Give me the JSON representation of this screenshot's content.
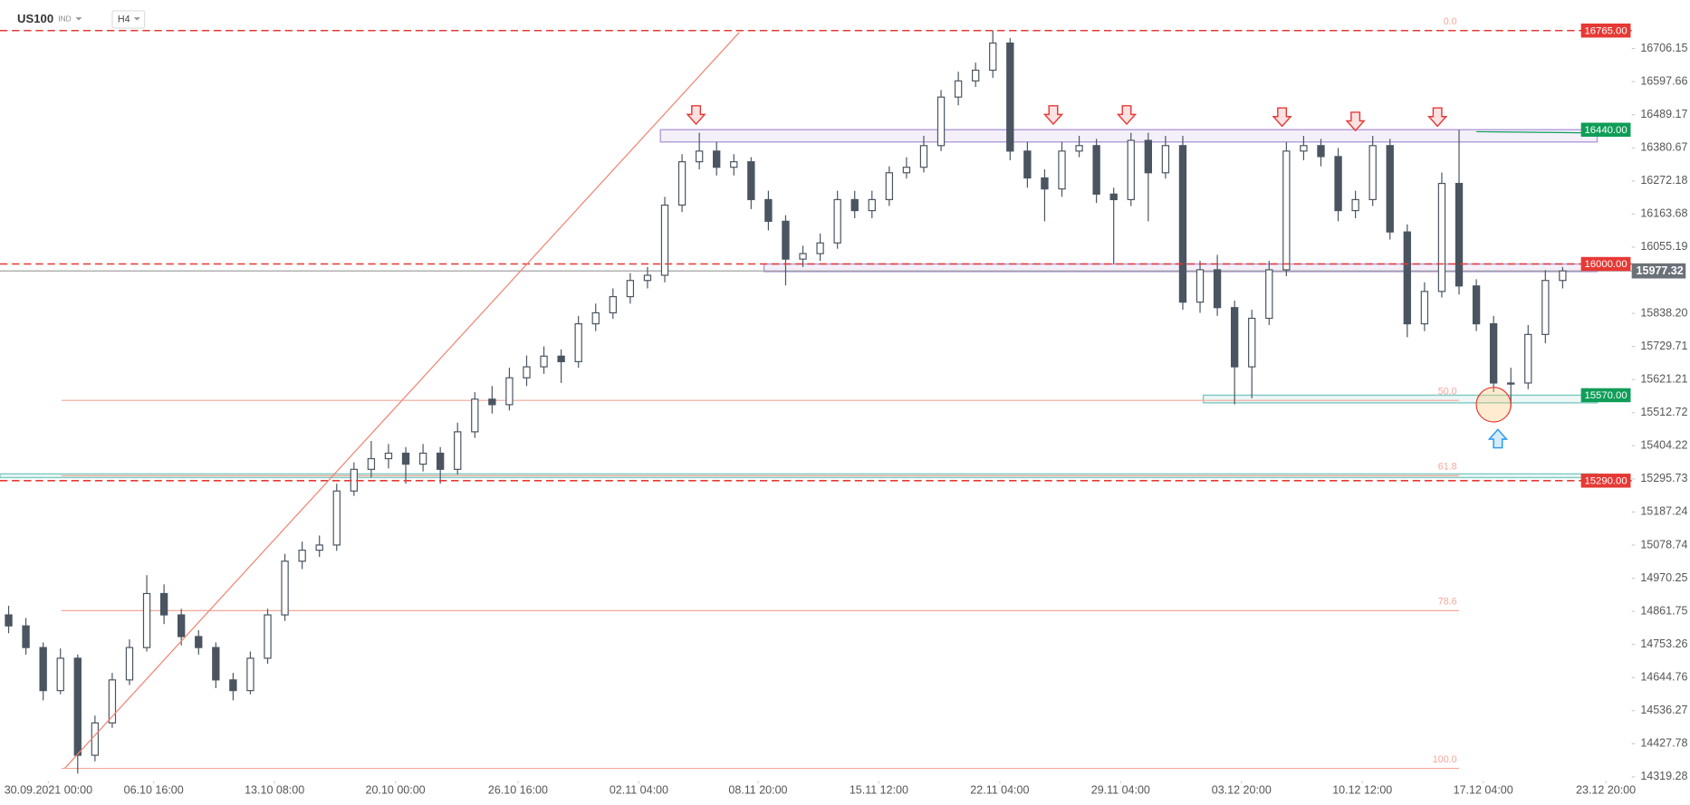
{
  "chart_data": {
    "type": "candlestick",
    "symbol": "US100",
    "market": "IND",
    "timeframe": "H4",
    "ylim": [
      14312,
      16865
    ],
    "xlim": [
      -0.5,
      94
    ],
    "yticks": [
      16706.15,
      16597.66,
      16489.17,
      16380.67,
      16272.18,
      16163.68,
      16055.19,
      {
        "value": 15838.2,
        "label": "15838.20"
      },
      15729.71,
      15621.21,
      15512.72,
      15404.22,
      15295.73,
      15187.24,
      15078.74,
      14970.25,
      14861.75,
      14753.26,
      14644.76,
      14536.27,
      14427.78,
      14319.28
    ],
    "xticks": [
      {
        "value": 2.3,
        "label": "30.09.2021  00:00"
      },
      {
        "value": 8.4,
        "label": "06.10  16:00"
      },
      {
        "value": 15.4,
        "label": "13.10  08:00"
      },
      {
        "value": 22.4,
        "label": "20.10  00:00"
      },
      {
        "value": 29.5,
        "label": "26.10  16:00"
      },
      {
        "value": 36.5,
        "label": "02.11  04:00"
      },
      {
        "value": 43.4,
        "label": "08.11  20:00"
      },
      {
        "value": 50.4,
        "label": "15.11  12:00"
      },
      {
        "value": 57.4,
        "label": "22.11  04:00"
      },
      {
        "value": 64.4,
        "label": "29.11  04:00"
      },
      {
        "value": 71.4,
        "label": "03.12  20:00"
      },
      {
        "value": 78.4,
        "label": "10.12  12:00"
      },
      {
        "value": 85.4,
        "label": "17.12  04:00"
      },
      {
        "value": 92.5,
        "label": "23.12  20:00"
      }
    ],
    "up_color": "#ffffff",
    "down_color": "#4a5561",
    "candles": [
      [
        14850,
        14880,
        14790,
        14814
      ],
      [
        14814,
        14840,
        14720,
        14743
      ],
      [
        14743,
        14760,
        14570,
        14602
      ],
      [
        14602,
        14740,
        14590,
        14708
      ],
      [
        14708,
        14720,
        14330,
        14390
      ],
      [
        14390,
        14520,
        14370,
        14496
      ],
      [
        14496,
        14660,
        14480,
        14637
      ],
      [
        14637,
        14770,
        14620,
        14743
      ],
      [
        14743,
        14980,
        14730,
        14920
      ],
      [
        14920,
        14950,
        14820,
        14850
      ],
      [
        14850,
        14870,
        14750,
        14779
      ],
      [
        14779,
        14800,
        14720,
        14743
      ],
      [
        14743,
        14760,
        14610,
        14637
      ],
      [
        14637,
        14660,
        14570,
        14602
      ],
      [
        14602,
        14730,
        14590,
        14708
      ],
      [
        14708,
        14870,
        14690,
        14850
      ],
      [
        14850,
        15050,
        14830,
        15026
      ],
      [
        15026,
        15090,
        15000,
        15062
      ],
      [
        15062,
        15110,
        15040,
        15079
      ],
      [
        15079,
        15280,
        15060,
        15256
      ],
      [
        15256,
        15350,
        15240,
        15327
      ],
      [
        15327,
        15420,
        15300,
        15362
      ],
      [
        15362,
        15410,
        15330,
        15380
      ],
      [
        15380,
        15400,
        15280,
        15344
      ],
      [
        15344,
        15410,
        15320,
        15380
      ],
      [
        15380,
        15400,
        15280,
        15327
      ],
      [
        15327,
        15480,
        15310,
        15450
      ],
      [
        15450,
        15580,
        15430,
        15557
      ],
      [
        15557,
        15600,
        15510,
        15539
      ],
      [
        15539,
        15660,
        15520,
        15627
      ],
      [
        15627,
        15700,
        15600,
        15663
      ],
      [
        15663,
        15730,
        15640,
        15698
      ],
      [
        15698,
        15720,
        15610,
        15680
      ],
      [
        15680,
        15830,
        15660,
        15804
      ],
      [
        15804,
        15870,
        15780,
        15840
      ],
      [
        15840,
        15920,
        15820,
        15893
      ],
      [
        15893,
        15970,
        15870,
        15946
      ],
      [
        15946,
        15990,
        15920,
        15963
      ],
      [
        15963,
        16220,
        15940,
        16193
      ],
      [
        16193,
        16360,
        16170,
        16335
      ],
      [
        16335,
        16430,
        16310,
        16370
      ],
      [
        16370,
        16400,
        16290,
        16317
      ],
      [
        16317,
        16360,
        16290,
        16335
      ],
      [
        16335,
        16350,
        16180,
        16211
      ],
      [
        16211,
        16240,
        16110,
        16140
      ],
      [
        16140,
        16160,
        15930,
        16016
      ],
      [
        16016,
        16060,
        15990,
        16034
      ],
      [
        16034,
        16100,
        16010,
        16069
      ],
      [
        16069,
        16240,
        16050,
        16211
      ],
      [
        16211,
        16240,
        16150,
        16175
      ],
      [
        16175,
        16240,
        16150,
        16211
      ],
      [
        16211,
        16320,
        16190,
        16299
      ],
      [
        16299,
        16350,
        16280,
        16317
      ],
      [
        16317,
        16420,
        16300,
        16388
      ],
      [
        16388,
        16570,
        16370,
        16547
      ],
      [
        16547,
        16630,
        16520,
        16600
      ],
      [
        16600,
        16660,
        16580,
        16635
      ],
      [
        16635,
        16765,
        16610,
        16724
      ],
      [
        16724,
        16740,
        16340,
        16370
      ],
      [
        16370,
        16400,
        16250,
        16282
      ],
      [
        16282,
        16310,
        16140,
        16246
      ],
      [
        16246,
        16400,
        16220,
        16370
      ],
      [
        16370,
        16420,
        16350,
        16388
      ],
      [
        16388,
        16410,
        16200,
        16229
      ],
      [
        16229,
        16250,
        16000,
        16211
      ],
      [
        16211,
        16430,
        16190,
        16405
      ],
      [
        16405,
        16430,
        16140,
        16299
      ],
      [
        16299,
        16420,
        16280,
        16388
      ],
      [
        16388,
        16420,
        15850,
        15875
      ],
      [
        15875,
        16010,
        15840,
        15981
      ],
      [
        15981,
        16030,
        15830,
        15857
      ],
      [
        15857,
        15880,
        15540,
        15663
      ],
      [
        15663,
        15850,
        15560,
        15822
      ],
      [
        15822,
        16010,
        15800,
        15981
      ],
      [
        15981,
        16400,
        15960,
        16370
      ],
      [
        16370,
        16420,
        16340,
        16388
      ],
      [
        16388,
        16410,
        16320,
        16352
      ],
      [
        16352,
        16380,
        16140,
        16175
      ],
      [
        16175,
        16240,
        16150,
        16211
      ],
      [
        16211,
        16420,
        16190,
        16388
      ],
      [
        16388,
        16410,
        16080,
        16105
      ],
      [
        16105,
        16130,
        15760,
        15804
      ],
      [
        15804,
        15940,
        15780,
        15910
      ],
      [
        15910,
        16300,
        15890,
        16264
      ],
      [
        16264,
        16440,
        15900,
        15928
      ],
      [
        15928,
        15950,
        15780,
        15804
      ],
      [
        15804,
        15830,
        15580,
        15610
      ],
      [
        15610,
        15660,
        15530,
        15610
      ],
      [
        15610,
        15800,
        15590,
        15769
      ],
      [
        15769,
        15980,
        15740,
        15946
      ],
      [
        15946,
        15990,
        15920,
        15977.32
      ]
    ],
    "last_price_label": "15977.32",
    "levels": [
      {
        "price": 16765,
        "label": "16765.00",
        "color": "#e53935",
        "dashed": true
      },
      {
        "price": 16440,
        "label": "16440.00",
        "color": "#0f9d58",
        "dashed": false
      },
      {
        "price": 16000,
        "label": "16000.00",
        "color": "#e53935",
        "dashed": true
      },
      {
        "price": 15570,
        "label": "15570.00",
        "color": "#0f9d58",
        "dashed": false
      },
      {
        "price": 15290,
        "label": "15290.00",
        "color": "#e53935",
        "dashed": true
      }
    ],
    "zones": [
      {
        "low": 16400,
        "high": 16440,
        "color": "#b39ddb"
      },
      {
        "low": 15975,
        "high": 16000,
        "color": "#b39ddb"
      },
      {
        "low": 15545,
        "high": 15570,
        "color": "#80cbc4"
      },
      {
        "low": 15300,
        "high": 15312,
        "color": "#80cbc4"
      }
    ],
    "fib_levels": [
      {
        "label": "0.0",
        "price": 16765
      },
      {
        "label": "50.0",
        "price": 15553
      },
      {
        "label": "61.8",
        "price": 15306
      },
      {
        "label": "78.6",
        "price": 14864
      },
      {
        "label": "100.0",
        "price": 14347
      }
    ]
  }
}
